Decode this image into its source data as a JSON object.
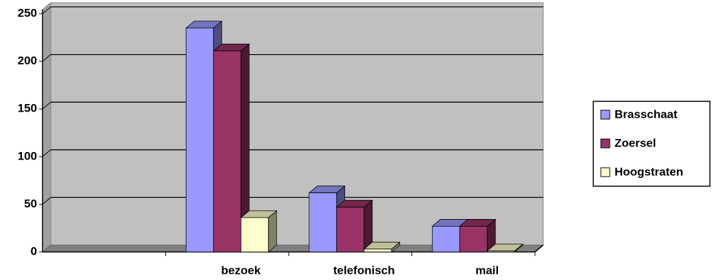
{
  "chart_data": {
    "type": "bar",
    "categories": [
      null,
      "bezoek",
      "telefonisch",
      "mail"
    ],
    "series": [
      {
        "name": "Brasschaat",
        "color": "#9999ff",
        "values": [
          null,
          235,
          62,
          27
        ]
      },
      {
        "name": "Zoersel",
        "color": "#993366",
        "values": [
          null,
          211,
          47,
          27
        ]
      },
      {
        "name": "Hoogstraten",
        "color": "#ffffcc",
        "values": [
          null,
          36,
          3,
          1
        ]
      }
    ],
    "ylim": [
      0,
      250
    ],
    "yticks": [
      0,
      50,
      100,
      150,
      200,
      250
    ],
    "grid": true,
    "legend": "right"
  }
}
